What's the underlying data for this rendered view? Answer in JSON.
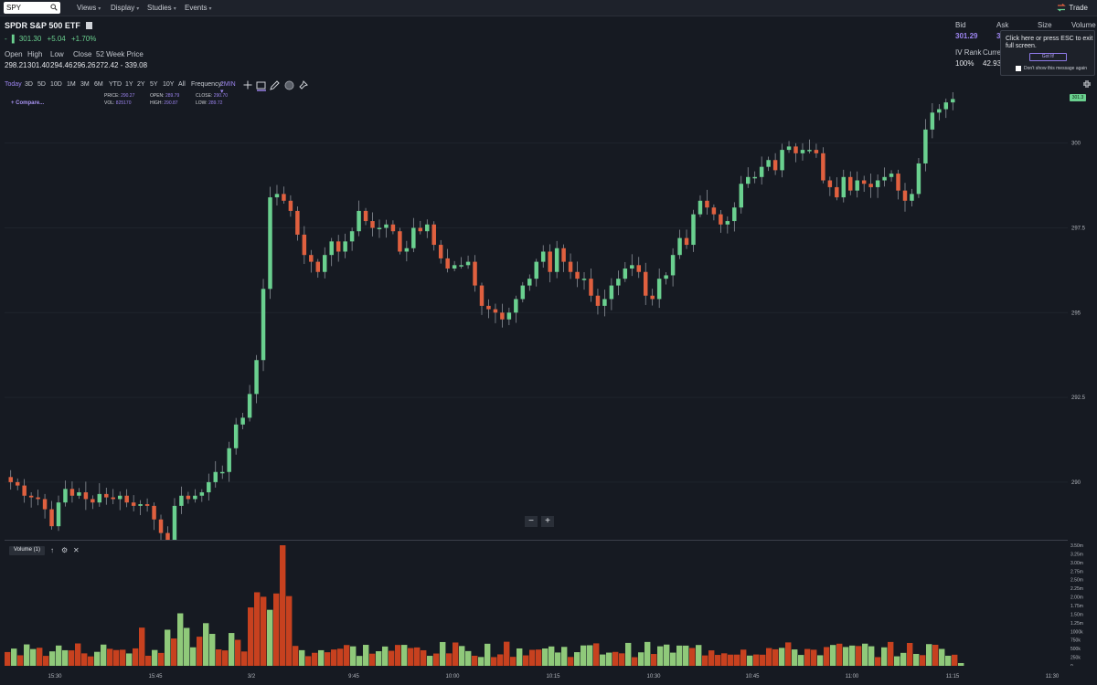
{
  "nav": {
    "search_value": "SPY",
    "menus": [
      "Views",
      "Display",
      "Studies",
      "Events"
    ],
    "trade_label": "Trade"
  },
  "quote": {
    "title": "SPDR S&P 500 ETF",
    "price": "301.30",
    "change": "+5.04",
    "change_pct": "+1.70%",
    "stats": [
      {
        "label": "Open",
        "value": "298.21"
      },
      {
        "label": "High",
        "value": "301.40"
      },
      {
        "label": "Low",
        "value": "294.46"
      },
      {
        "label": "Close",
        "value": "296.26"
      },
      {
        "label": "52 Week Price",
        "value": "272.42 - 339.08"
      }
    ],
    "bid_label": "Bid",
    "bid_value": "301.29",
    "ask_label": "Ask",
    "ask_value": "3",
    "size_label": "Size",
    "volume_label": "Volume",
    "iv_rank_label": "IV Rank",
    "iv_rank_value": "100%",
    "current_label": "Curren",
    "current_value": "42.93"
  },
  "popup": {
    "message": "Click here or press ESC to exit full screen.",
    "button": "Got It!",
    "checkbox_label": "Don't show this message again"
  },
  "ranges": [
    "Today",
    "3D",
    "5D",
    "10D",
    "1M",
    "3M",
    "6M",
    "YTD",
    "1Y",
    "2Y",
    "5Y",
    "10Y",
    "All"
  ],
  "frequency_label": "Frequency:",
  "frequency_value": "2MIN",
  "ohlc": {
    "price_label": "PRICE:",
    "price": "290.27",
    "open_label": "OPEN:",
    "open": "289.79",
    "close_label": "CLOSE:",
    "close": "290.70",
    "vol_label": "VOL:",
    "vol": "825170",
    "high_label": "HIGH:",
    "high": "290.87",
    "low_label": "LOW:",
    "low": "289.72"
  },
  "compare_label": "+ Compare...",
  "last_price_tag": "301.3",
  "volume_panel_label": "Volume (1)",
  "colors": {
    "up": "#6ad08f",
    "down": "#e0603f",
    "vol_up": "#8fc97a",
    "vol_down": "#c7411f",
    "accent": "#9d85f0"
  },
  "chart_data": {
    "type": "candlestick",
    "price_axis": {
      "ticks": [
        300,
        297.5,
        295,
        292.5,
        290
      ],
      "tick_labels": [
        "300",
        "297.5",
        "295",
        "292.5",
        "290"
      ],
      "range": [
        288.3,
        301.5
      ]
    },
    "volume_axis": {
      "tick_labels": [
        "3.50m",
        "3.25m",
        "3.00m",
        "2.75m",
        "2.50m",
        "2.25m",
        "2.00m",
        "1.75m",
        "1.50m",
        "1.25m",
        "1000k",
        "750k",
        "500k",
        "250k",
        "0"
      ],
      "range": [
        0,
        3500000
      ]
    },
    "time_labels": [
      "15:30",
      "15:45",
      "3/2",
      "9:45",
      "10:00",
      "10:15",
      "10:30",
      "10:45",
      "11:00",
      "11:15",
      "11:30"
    ],
    "closes": [
      290.0,
      289.9,
      289.6,
      289.55,
      289.5,
      289.2,
      288.7,
      289.4,
      289.8,
      289.6,
      289.7,
      289.5,
      289.4,
      289.65,
      289.55,
      289.5,
      289.6,
      289.4,
      289.3,
      289.35,
      289.3,
      288.9,
      288.5,
      288.3,
      289.3,
      289.6,
      289.5,
      289.6,
      289.7,
      290.0,
      290.3,
      290.3,
      291.0,
      291.7,
      291.9,
      292.6,
      293.6,
      295.7,
      298.4,
      298.5,
      298.3,
      298.0,
      297.3,
      296.7,
      296.5,
      296.2,
      296.7,
      297.1,
      296.8,
      297.1,
      297.4,
      298.0,
      297.7,
      297.5,
      297.5,
      297.6,
      297.4,
      296.8,
      296.9,
      297.5,
      297.4,
      297.6,
      297.0,
      296.6,
      296.3,
      296.4,
      296.4,
      296.5,
      295.8,
      295.2,
      295.1,
      295.0,
      294.8,
      295.0,
      295.4,
      295.8,
      296.0,
      296.5,
      296.8,
      296.2,
      296.9,
      296.5,
      296.2,
      296.0,
      296.0,
      295.5,
      295.2,
      295.4,
      295.8,
      296.0,
      296.3,
      296.4,
      296.2,
      295.5,
      295.4,
      296.0,
      296.1,
      296.7,
      297.2,
      297.0,
      297.9,
      298.3,
      298.1,
      297.9,
      297.6,
      297.7,
      298.1,
      298.8,
      299.0,
      299.0,
      299.3,
      299.5,
      299.2,
      299.8,
      299.9,
      299.7,
      299.8,
      299.8,
      299.7,
      298.9,
      298.7,
      298.4,
      299.0,
      298.6,
      298.9,
      298.8,
      298.7,
      298.9,
      299.0,
      299.1,
      298.6,
      298.3,
      298.5,
      299.4,
      300.4,
      300.9,
      301.0,
      301.2,
      301.3
    ]
  }
}
